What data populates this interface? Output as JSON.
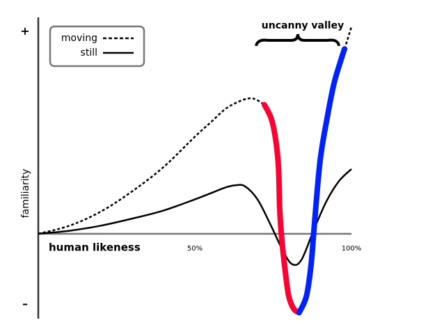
{
  "chart_data": {
    "type": "line",
    "xlabel": "human likeness",
    "ylabel": "familiarity",
    "annotation": "uncanny valley",
    "xlim": [
      0,
      100
    ],
    "ylim": [
      -42,
      107
    ],
    "xticks": [
      {
        "value": 50,
        "label": "50%"
      },
      {
        "value": 100,
        "label": "100%"
      }
    ],
    "yticks": [
      {
        "value": 100,
        "label": "+"
      },
      {
        "value": -35,
        "label": "–"
      }
    ],
    "legend": "upper left",
    "series": [
      {
        "name": "moving",
        "color": "#000000",
        "style": "dashed",
        "x": [
          0,
          10,
          20,
          30,
          40,
          50,
          55,
          60,
          65,
          68,
          70,
          72.2,
          85,
          97.8,
          100
        ],
        "values": [
          0,
          4,
          11,
          21,
          33,
          48,
          55,
          62,
          66,
          67,
          66,
          63.8,
          null,
          91.4,
          102.4
        ]
      },
      {
        "name": "still",
        "color": "#000000",
        "style": "solid",
        "x": [
          0,
          10,
          20,
          30,
          40,
          50,
          55,
          60,
          63,
          66,
          70,
          74,
          78,
          81,
          84,
          88,
          92,
          96,
          100
        ],
        "values": [
          0,
          1.5,
          4,
          7.5,
          11.5,
          17,
          20,
          23,
          24,
          23.5,
          17,
          5,
          -8,
          -15,
          -13,
          2,
          16,
          26,
          32
        ]
      }
    ],
    "highlights": [
      {
        "color": "#ff0033",
        "x": [
          72.2,
          74.4,
          75.8,
          76.7,
          77.1,
          77.8,
          78.9,
          80,
          81.6,
          83.3
        ],
        "values": [
          63.8,
          56.9,
          46.6,
          32.8,
          12.1,
          -3.4,
          -19,
          -31,
          -37.2,
          -39
        ]
      },
      {
        "color": "#0022ff",
        "x": [
          83.3,
          85.6,
          87.1,
          88.2,
          90,
          92.2,
          94.4,
          96.7,
          97.8
        ],
        "values": [
          -39,
          -31,
          -15.5,
          5.2,
          36.2,
          56.9,
          74.1,
          86.2,
          91.4
        ]
      }
    ]
  }
}
